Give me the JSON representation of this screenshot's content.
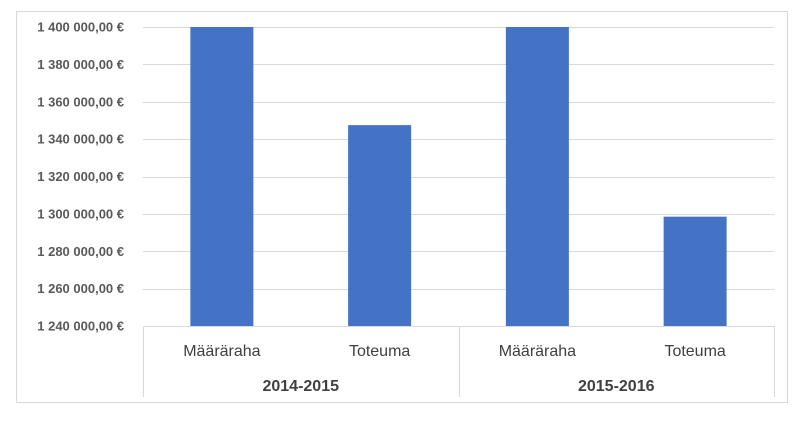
{
  "chart_data": {
    "type": "bar",
    "title": "",
    "xlabel": "",
    "ylabel": "",
    "ylim": [
      1240000,
      1400000
    ],
    "y_ticks": [
      1240000,
      1260000,
      1280000,
      1300000,
      1320000,
      1340000,
      1360000,
      1380000,
      1400000
    ],
    "y_tick_labels": [
      "1 240 000,00 €",
      "1 260 000,00 €",
      "1 280 000,00 €",
      "1 300 000,00 €",
      "1 320 000,00 €",
      "1 340 000,00 €",
      "1 360 000,00 €",
      "1 380 000,00 €",
      "1 400 000,00 €"
    ],
    "groups": [
      {
        "label": "2014-2015",
        "categories": [
          {
            "label": "Määräraha",
            "value": 1400000
          },
          {
            "label": "Toteuma",
            "value": 1347500
          }
        ]
      },
      {
        "label": "2015-2016",
        "categories": [
          {
            "label": "Määräraha",
            "value": 1400000
          },
          {
            "label": "Toteuma",
            "value": 1298500
          }
        ]
      }
    ],
    "grid": true,
    "legend": "none",
    "bar_color": "#4472c4",
    "grid_color": "#d9d9d9"
  }
}
